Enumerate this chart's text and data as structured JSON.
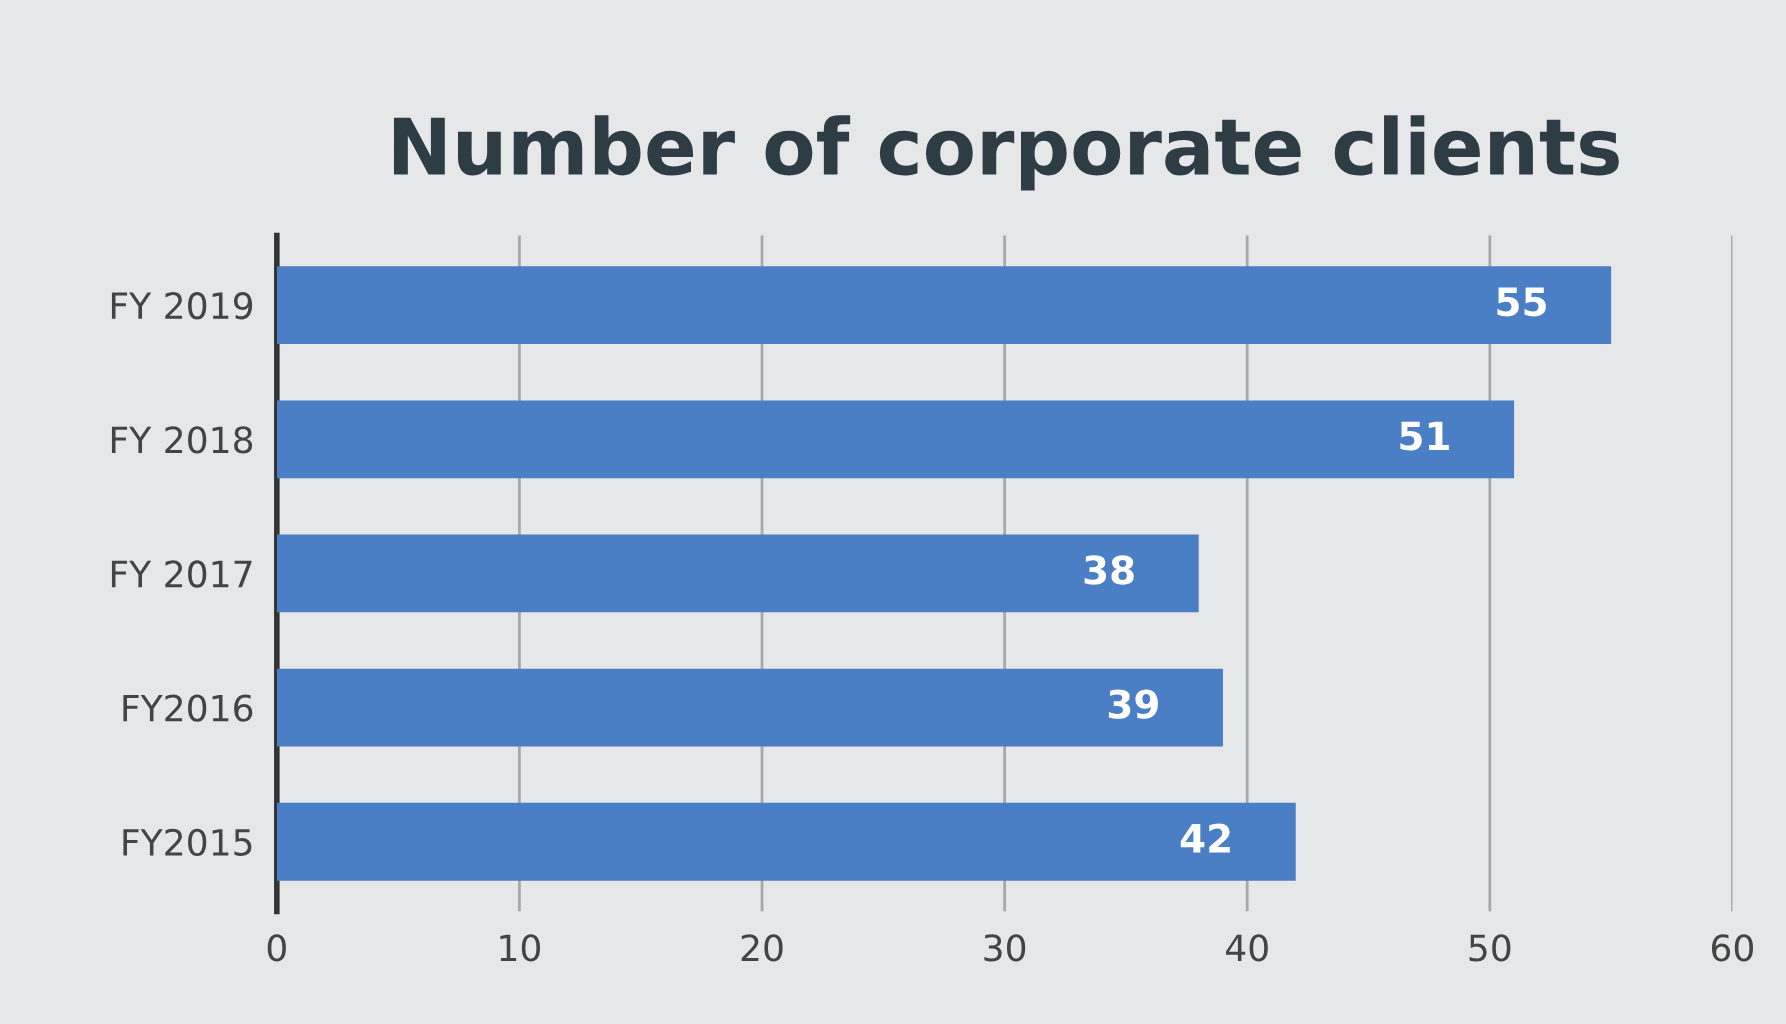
{
  "chart_data": {
    "type": "bar",
    "orientation": "horizontal",
    "title": "Number of corporate clients",
    "categories": [
      "FY 2019",
      "FY 2018",
      "FY 2017",
      "FY2016",
      "FY2015"
    ],
    "values": [
      55,
      51,
      38,
      39,
      42
    ],
    "color": "#4a7fc6",
    "xlim": [
      0,
      60
    ],
    "xticks": [
      0,
      10,
      20,
      30,
      40,
      50,
      60
    ],
    "grid": "x",
    "data_labels": true
  }
}
